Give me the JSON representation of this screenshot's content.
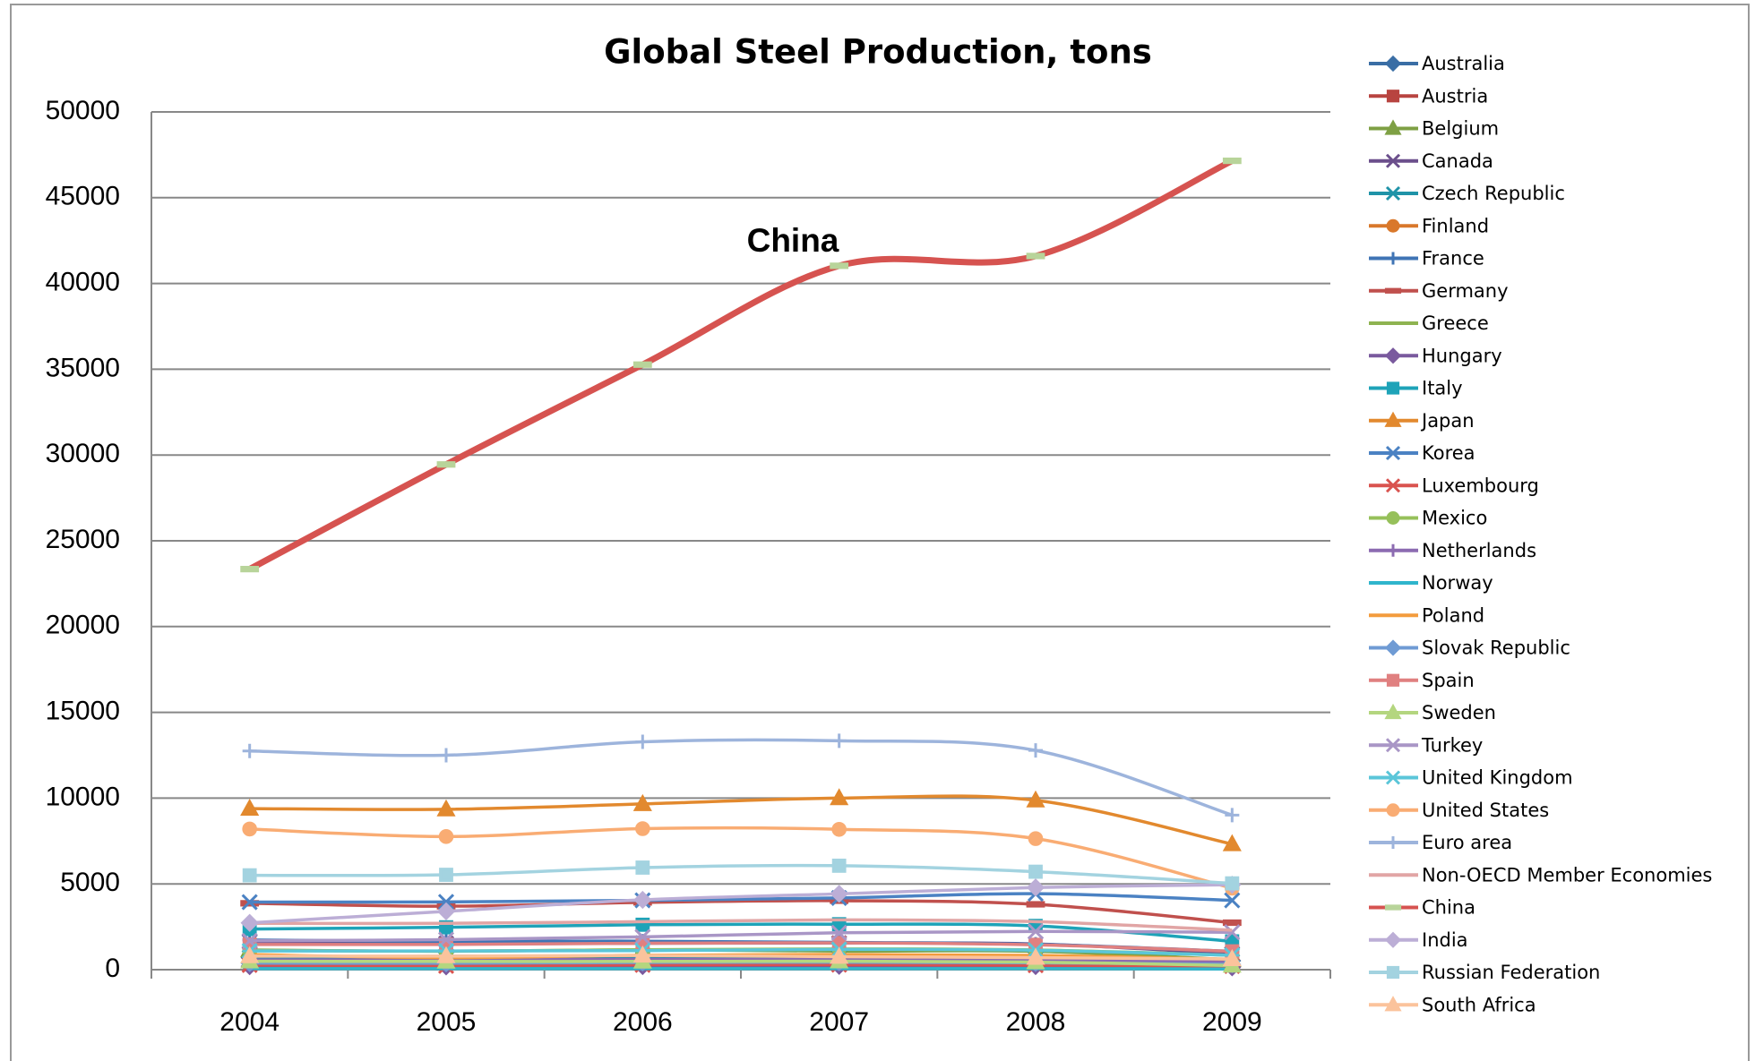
{
  "chart_data": {
    "type": "line",
    "title": "Global Steel Production, tons",
    "annotation": "China",
    "categories": [
      "2004",
      "2005",
      "2006",
      "2007",
      "2008",
      "2009"
    ],
    "ylim": [
      0,
      50000
    ],
    "yticks": [
      0,
      5000,
      10000,
      15000,
      20000,
      25000,
      30000,
      35000,
      40000,
      45000,
      50000
    ],
    "grid": true,
    "legend": "right",
    "smooth": true,
    "series": [
      {
        "name": "Australia",
        "color": "#3a6ea5",
        "marker": "diamond",
        "values": [
          700,
          780,
          790,
          790,
          780,
          520
        ]
      },
      {
        "name": "Austria",
        "color": "#b84440",
        "marker": "square",
        "values": [
          620,
          650,
          700,
          720,
          690,
          540
        ]
      },
      {
        "name": "Belgium",
        "color": "#7ea044",
        "marker": "triangle",
        "values": [
          1150,
          1070,
          1160,
          1080,
          1070,
          580
        ]
      },
      {
        "name": "Canada",
        "color": "#6b4f8c",
        "marker": "x",
        "values": [
          1630,
          1520,
          1540,
          1550,
          1500,
          920
        ]
      },
      {
        "name": "Czech Republic",
        "color": "#1f93a8",
        "marker": "star",
        "values": [
          700,
          620,
          690,
          720,
          640,
          460
        ]
      },
      {
        "name": "Finland",
        "color": "#d9782b",
        "marker": "circle",
        "values": [
          480,
          480,
          510,
          440,
          420,
          300
        ]
      },
      {
        "name": "France",
        "color": "#3f74b5",
        "marker": "plus",
        "values": [
          1730,
          1650,
          1660,
          1590,
          1480,
          1070
        ]
      },
      {
        "name": "Germany",
        "color": "#c0504d",
        "marker": "dash",
        "values": [
          3870,
          3700,
          3920,
          4020,
          3810,
          2740
        ]
      },
      {
        "name": "Greece",
        "color": "#8eb350",
        "marker": "none",
        "values": [
          190,
          220,
          230,
          250,
          240,
          200
        ]
      },
      {
        "name": "Hungary",
        "color": "#7a5a9e",
        "marker": "diamond",
        "values": [
          200,
          190,
          210,
          220,
          210,
          140
        ]
      },
      {
        "name": "Italy",
        "color": "#1ea3b8",
        "marker": "square",
        "values": [
          2370,
          2470,
          2620,
          2650,
          2550,
          1650
        ]
      },
      {
        "name": "Japan",
        "color": "#e2892e",
        "marker": "triangle",
        "values": [
          9390,
          9350,
          9660,
          10000,
          9870,
          7320
        ]
      },
      {
        "name": "Korea",
        "color": "#4b82c3",
        "marker": "x",
        "values": [
          3940,
          3950,
          4040,
          4180,
          4430,
          4040
        ]
      },
      {
        "name": "Luxembourg",
        "color": "#d9534f",
        "marker": "star",
        "values": [
          270,
          220,
          280,
          290,
          260,
          210
        ]
      },
      {
        "name": "Mexico",
        "color": "#96c05a",
        "marker": "circle",
        "values": [
          1120,
          1080,
          1160,
          1210,
          1150,
          840
        ]
      },
      {
        "name": "Netherlands",
        "color": "#8c6bb1",
        "marker": "plus",
        "values": [
          570,
          580,
          600,
          590,
          580,
          440
        ]
      },
      {
        "name": "Norway",
        "color": "#2fb5cc",
        "marker": "none",
        "values": [
          60,
          60,
          60,
          60,
          60,
          40
        ]
      },
      {
        "name": "Poland",
        "color": "#f39c3d",
        "marker": "none",
        "values": [
          880,
          700,
          840,
          880,
          830,
          610
        ]
      },
      {
        "name": "Slovak Republic",
        "color": "#6f9bd4",
        "marker": "diamond",
        "values": [
          380,
          370,
          420,
          430,
          400,
          310
        ]
      },
      {
        "name": "Spain",
        "color": "#e08080",
        "marker": "square",
        "values": [
          1470,
          1470,
          1540,
          1560,
          1450,
          1070
        ]
      },
      {
        "name": "Sweden",
        "color": "#b4d67f",
        "marker": "triangle",
        "values": [
          490,
          480,
          480,
          490,
          440,
          240
        ]
      },
      {
        "name": "Turkey",
        "color": "#a996c6",
        "marker": "x",
        "values": [
          1680,
          1750,
          1910,
          2150,
          2230,
          2180
        ]
      },
      {
        "name": "United Kingdom",
        "color": "#5bc6d9",
        "marker": "star",
        "values": [
          1090,
          1090,
          1110,
          1180,
          1130,
          840
        ]
      },
      {
        "name": "United States",
        "color": "#f9ac73",
        "marker": "circle",
        "values": [
          8200,
          7760,
          8220,
          8180,
          7640,
          4750
        ]
      },
      {
        "name": "Euro area",
        "color": "#9db4dc",
        "marker": "plus",
        "values": [
          12750,
          12500,
          13280,
          13340,
          12780,
          9010
        ]
      },
      {
        "name": "Non-OECD Member Economies",
        "color": "#e1a5a5",
        "marker": "none",
        "values": [
          2700,
          2700,
          2800,
          2900,
          2800,
          2300
        ]
      },
      {
        "name": "China",
        "color": "#d65350",
        "marker": "dash",
        "marker_color": "#b8d49a",
        "width": 7,
        "values": [
          23350,
          29450,
          35270,
          41030,
          41600,
          47150
        ]
      },
      {
        "name": "India",
        "color": "#bcaed6",
        "marker": "diamond",
        "values": [
          2730,
          3400,
          4070,
          4420,
          4790,
          4950
        ]
      },
      {
        "name": "Russian Federation",
        "color": "#a3d3e0",
        "marker": "square",
        "values": [
          5500,
          5530,
          5950,
          6060,
          5710,
          5030
        ]
      },
      {
        "name": "South Africa",
        "color": "#fbc39c",
        "marker": "triangle",
        "values": [
          790,
          790,
          830,
          760,
          700,
          620
        ]
      }
    ]
  }
}
